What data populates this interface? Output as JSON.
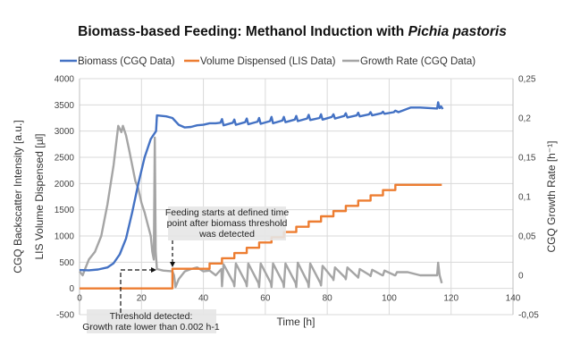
{
  "chart_data": {
    "type": "line",
    "title": {
      "main": "Biomass-based Feeding: Methanol Induction with ",
      "italic": "Pichia pastoris"
    },
    "xlabel": "Time [h]",
    "ylabel_left_outer": "CGQ Backscatter Intensity [a.u.]",
    "ylabel_left_inner": "LIS Volume Dispensed [µl]",
    "ylabel_right": "CGQ Growth Rate [h⁻¹]",
    "xlim": [
      0,
      140
    ],
    "ylim_left": [
      -500,
      4000
    ],
    "ylim_right": [
      -0.05,
      0.25
    ],
    "x_ticks": [
      0,
      20,
      40,
      60,
      80,
      100,
      120,
      140
    ],
    "x_tick_labels": [
      "0",
      "20",
      "40",
      "60",
      "80",
      "100",
      "120",
      "140"
    ],
    "y_left_ticks": [
      -500,
      0,
      500,
      1000,
      1500,
      2000,
      2500,
      3000,
      3500,
      4000
    ],
    "y_left_tick_labels": [
      "-500",
      "0",
      "500",
      "1000",
      "1500",
      "2000",
      "2500",
      "3000",
      "3500",
      "4000"
    ],
    "y_right_ticks": [
      -0.05,
      0,
      0.05,
      0.1,
      0.15,
      0.2,
      0.25
    ],
    "y_right_tick_labels": [
      "-0,05",
      "0",
      "0,05",
      "0,1",
      "0,15",
      "0,2",
      "0,25"
    ],
    "grid": true,
    "legend_position": "top",
    "series": [
      {
        "name": "Biomass (CGQ Data)",
        "axis": "left",
        "color": "#4472c4",
        "points": [
          [
            0,
            350
          ],
          [
            3,
            345
          ],
          [
            6,
            360
          ],
          [
            9,
            400
          ],
          [
            11,
            480
          ],
          [
            13,
            650
          ],
          [
            15,
            950
          ],
          [
            17,
            1450
          ],
          [
            19,
            2000
          ],
          [
            21,
            2500
          ],
          [
            23,
            2850
          ],
          [
            24.7,
            3000
          ],
          [
            25,
            3300
          ],
          [
            28,
            3280
          ],
          [
            30,
            3250
          ],
          [
            32,
            3120
          ],
          [
            34,
            3070
          ],
          [
            36,
            3080
          ],
          [
            38,
            3110
          ],
          [
            40,
            3120
          ],
          [
            42,
            3150
          ],
          [
            44,
            3150
          ],
          [
            45.5,
            3160
          ],
          [
            46,
            3230
          ],
          [
            46.5,
            3110
          ],
          [
            49.5,
            3160
          ],
          [
            50,
            3220
          ],
          [
            50.5,
            3120
          ],
          [
            53.5,
            3170
          ],
          [
            54,
            3240
          ],
          [
            54.5,
            3130
          ],
          [
            57.5,
            3180
          ],
          [
            58,
            3250
          ],
          [
            58.5,
            3140
          ],
          [
            61.5,
            3190
          ],
          [
            62,
            3270
          ],
          [
            62.5,
            3150
          ],
          [
            65.5,
            3200
          ],
          [
            66,
            3270
          ],
          [
            66.5,
            3170
          ],
          [
            69.5,
            3220
          ],
          [
            70,
            3290
          ],
          [
            70.5,
            3190
          ],
          [
            73.5,
            3240
          ],
          [
            74,
            3310
          ],
          [
            74.5,
            3210
          ],
          [
            77.5,
            3250
          ],
          [
            78,
            3320
          ],
          [
            78.5,
            3220
          ],
          [
            81.5,
            3270
          ],
          [
            82,
            3320
          ],
          [
            82.5,
            3240
          ],
          [
            85.5,
            3290
          ],
          [
            86,
            3340
          ],
          [
            86.5,
            3260
          ],
          [
            89.5,
            3300
          ],
          [
            90,
            3350
          ],
          [
            90.5,
            3280
          ],
          [
            93.5,
            3320
          ],
          [
            94,
            3360
          ],
          [
            94.5,
            3300
          ],
          [
            97.5,
            3340
          ],
          [
            98,
            3370
          ],
          [
            98.5,
            3330
          ],
          [
            101.5,
            3360
          ],
          [
            102,
            3390
          ],
          [
            103,
            3360
          ],
          [
            107,
            3450
          ],
          [
            110,
            3450
          ],
          [
            115.5,
            3430
          ],
          [
            115.8,
            3550
          ],
          [
            116.3,
            3440
          ],
          [
            116.8,
            3470
          ],
          [
            117.3,
            3420
          ]
        ]
      },
      {
        "name": "Volume Dispensed (LIS Data)",
        "axis": "left",
        "color": "#ed7d31",
        "step": true,
        "end_x": 117,
        "points": [
          [
            0,
            0
          ],
          [
            30,
            375
          ],
          [
            42,
            475
          ],
          [
            46,
            575
          ],
          [
            50,
            675
          ],
          [
            54,
            775
          ],
          [
            58,
            875
          ],
          [
            62,
            975
          ],
          [
            66,
            1075
          ],
          [
            70,
            1175
          ],
          [
            74,
            1275
          ],
          [
            78,
            1375
          ],
          [
            82,
            1475
          ],
          [
            86,
            1575
          ],
          [
            90,
            1675
          ],
          [
            94,
            1775
          ],
          [
            98,
            1875
          ],
          [
            102,
            1975
          ]
        ]
      },
      {
        "name": "Growth Rate (CGQ Data)",
        "axis": "right",
        "color": "#a5a5a5",
        "points": [
          [
            0,
            0.005
          ],
          [
            1,
            0.0
          ],
          [
            2,
            0.01
          ],
          [
            3,
            0.02
          ],
          [
            5,
            0.03
          ],
          [
            7,
            0.05
          ],
          [
            9,
            0.09
          ],
          [
            11,
            0.14
          ],
          [
            12.5,
            0.19
          ],
          [
            13.5,
            0.182
          ],
          [
            14,
            0.19
          ],
          [
            15,
            0.178
          ],
          [
            16,
            0.16
          ],
          [
            17,
            0.14
          ],
          [
            18,
            0.12
          ],
          [
            19,
            0.11
          ],
          [
            20,
            0.092
          ],
          [
            21,
            0.08
          ],
          [
            22,
            0.065
          ],
          [
            23,
            0.05
          ],
          [
            23.5,
            0.03
          ],
          [
            24,
            0.02
          ],
          [
            24.3,
            0.175
          ],
          [
            24.6,
            0.03
          ],
          [
            25,
            0.008
          ],
          [
            27,
            0.006
          ],
          [
            30,
            0.005
          ],
          [
            30.5,
            0.0
          ],
          [
            31,
            -0.015
          ],
          [
            32,
            -0.005
          ],
          [
            34,
            0.005
          ],
          [
            36,
            0.008
          ],
          [
            38,
            0.01
          ],
          [
            40,
            0.005
          ],
          [
            42,
            0.006
          ],
          [
            44,
            0.0
          ],
          [
            45.8,
            0.008
          ],
          [
            46,
            -0.014
          ],
          [
            46.5,
            0.014
          ],
          [
            49.8,
            -0.01
          ],
          [
            50,
            -0.014
          ],
          [
            50.5,
            0.015
          ],
          [
            53.8,
            -0.01
          ],
          [
            54,
            -0.014
          ],
          [
            54.5,
            0.015
          ],
          [
            57.8,
            -0.01
          ],
          [
            58,
            -0.015
          ],
          [
            58.5,
            0.015
          ],
          [
            61.8,
            -0.01
          ],
          [
            62,
            -0.015
          ],
          [
            62.5,
            0.015
          ],
          [
            65.8,
            -0.01
          ],
          [
            66,
            -0.015
          ],
          [
            66.5,
            0.015
          ],
          [
            69.8,
            -0.01
          ],
          [
            70,
            -0.015
          ],
          [
            70.5,
            0.016
          ],
          [
            73.8,
            -0.01
          ],
          [
            74,
            -0.015
          ],
          [
            74.5,
            0.015
          ],
          [
            77.8,
            -0.01
          ],
          [
            78,
            -0.013
          ],
          [
            78.5,
            0.012
          ],
          [
            81.8,
            -0.004
          ],
          [
            82,
            -0.006
          ],
          [
            82.5,
            0.01
          ],
          [
            85.8,
            -0.003
          ],
          [
            86,
            -0.005
          ],
          [
            86.5,
            0.01
          ],
          [
            89.8,
            -0.002
          ],
          [
            90,
            -0.003
          ],
          [
            90.5,
            0.008
          ],
          [
            93.8,
            0.0
          ],
          [
            94,
            -0.001
          ],
          [
            94.5,
            0.007
          ],
          [
            97.8,
            0.0
          ],
          [
            98,
            0.0
          ],
          [
            98.5,
            0.006
          ],
          [
            101.8,
            0.0
          ],
          [
            102,
            0.0
          ],
          [
            102.5,
            0.004
          ],
          [
            106,
            0.004
          ],
          [
            110,
            0.0
          ],
          [
            115.5,
            0.0
          ],
          [
            115.8,
            0.016
          ],
          [
            116.3,
            0.0
          ],
          [
            117,
            -0.01
          ]
        ]
      }
    ],
    "annotations": [
      {
        "lines": [
          "Feeding starts at defined time",
          "point after biomass threshold",
          "was detected"
        ],
        "arrow_to": [
          30,
          375
        ]
      },
      {
        "lines": [
          "Threshold detected:",
          "Growth rate lower than 0.002 h-1"
        ],
        "arrow_to": [
          25,
          300
        ]
      }
    ]
  }
}
